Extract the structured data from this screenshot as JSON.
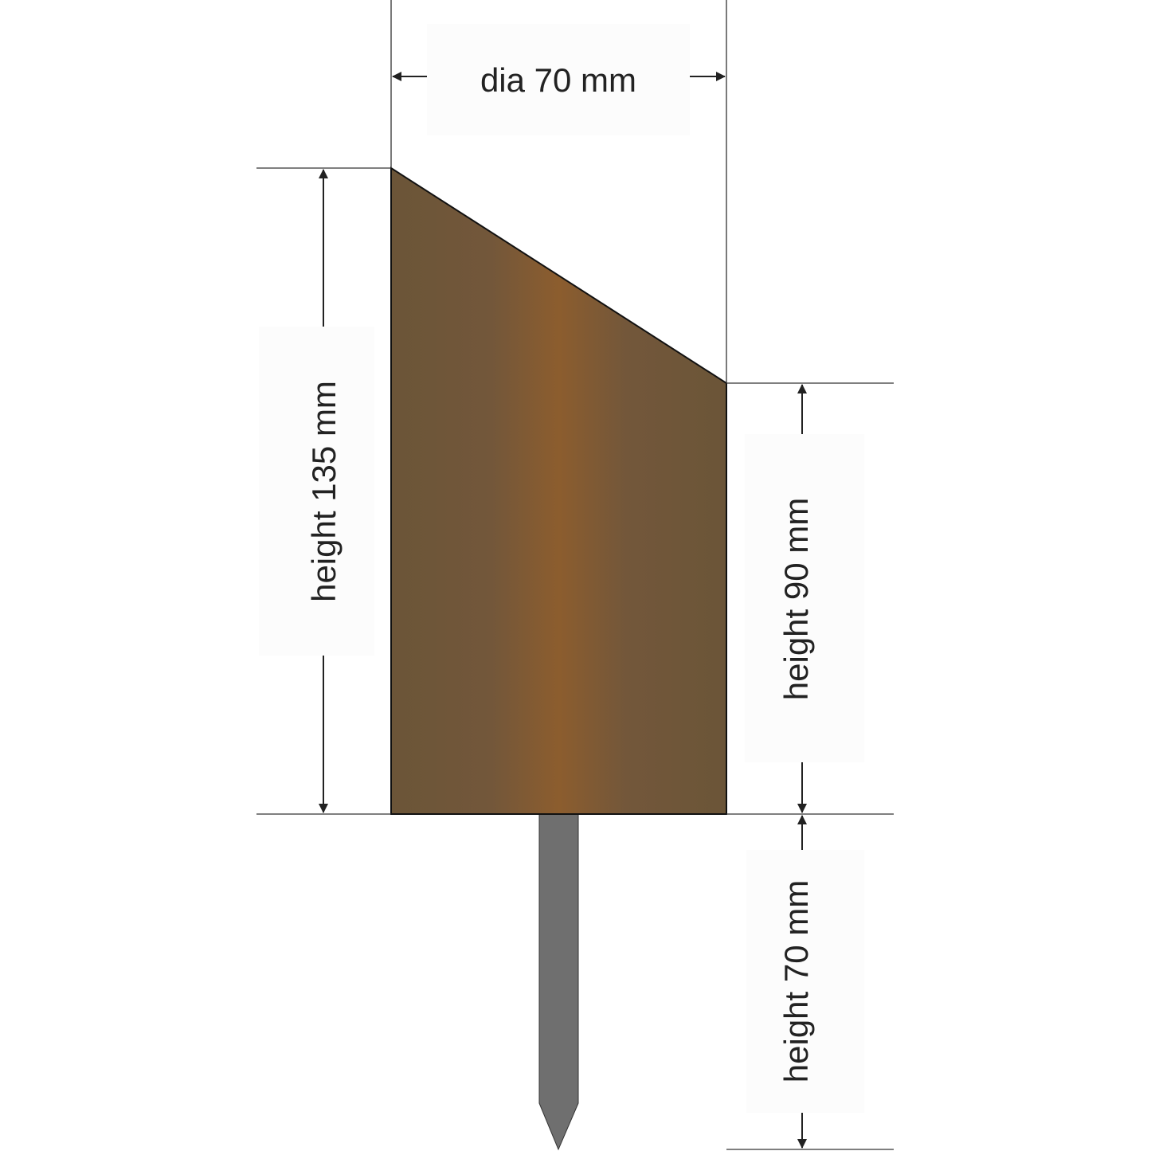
{
  "dimensions": {
    "diameter": "dia 70 mm",
    "height_total": "height 135 mm",
    "height_short": "height 90 mm",
    "spike_length": "height 70 mm"
  },
  "colors": {
    "wood_edge": "#6b5538",
    "wood_center": "#8c5d2e",
    "spike": "#6f6f6f",
    "lines": "#222222"
  }
}
